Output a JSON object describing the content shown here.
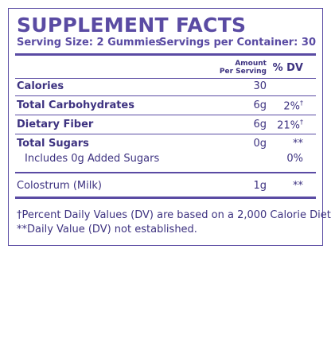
{
  "header": {
    "title": "SUPPLEMENT FACTS",
    "serving_size": "Serving Size: 2 Gummies",
    "servings_per_container": "Servings per Container: 30"
  },
  "table": {
    "amount_header": [
      "Amount",
      "Per Serving"
    ],
    "dv_header": "% DV",
    "rows": [
      {
        "name": "Calories",
        "amount": "30"
      },
      {
        "name": "Total Carbohydrates",
        "amount": "6g",
        "dv": "2%",
        "dv_mark": "†"
      },
      {
        "name": "Dietary Fiber",
        "amount": "6g",
        "dv": "21%",
        "dv_mark": "†"
      },
      {
        "name": "Total Sugars",
        "amount": "0g",
        "dv": "**"
      },
      {
        "name": "Includes 0g Added Sugars",
        "dv": "0%"
      },
      {
        "name": "Colostrum (Milk)",
        "amount": "1g",
        "dv": "**"
      }
    ]
  },
  "footnotes": [
    "†Percent Daily Values (DV) are based on a 2,000 Calorie Diet.",
    "**Daily Value (DV) not established."
  ]
}
